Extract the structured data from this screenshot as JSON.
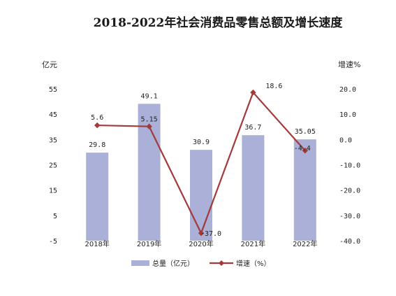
{
  "chart_data": {
    "type": "bar+line",
    "title": "2018-2022年社会消费品零售总额及增长速度",
    "categories": [
      "2018年",
      "2019年",
      "2020年",
      "2021年",
      "2022年"
    ],
    "series": [
      {
        "name": "总量（亿元）",
        "type": "bar",
        "axis": "left",
        "values": [
          29.8,
          49.1,
          30.9,
          36.7,
          35.05
        ],
        "labels": [
          "29.8",
          "49.1",
          "30.9",
          "36.7",
          "35.05"
        ],
        "color": "#aab0d8"
      },
      {
        "name": "增速（%）",
        "type": "line",
        "axis": "right",
        "values": [
          5.6,
          5.15,
          -37.0,
          18.6,
          -4.4
        ],
        "labels": [
          "5.6",
          "5.15",
          "-37.0",
          "18.6",
          "-4.4"
        ],
        "color": "#a33a3a"
      }
    ],
    "left_axis": {
      "unit": "亿元",
      "ylim": [
        -5,
        55
      ],
      "ticks": [
        55,
        45,
        35,
        25,
        15,
        5,
        -5
      ],
      "tick_labels": [
        "55",
        "45",
        "35",
        "25",
        "15",
        "5",
        "-5"
      ]
    },
    "right_axis": {
      "unit": "增速%",
      "ylim": [
        -40,
        20
      ],
      "ticks": [
        20,
        10,
        0,
        -10,
        -20,
        -30,
        -40
      ],
      "tick_labels": [
        "20.0",
        "10.0",
        "0.0",
        "-10.0",
        "-20.0",
        "-30.0",
        "-40.0"
      ]
    },
    "grid": false,
    "legend_position": "bottom"
  }
}
